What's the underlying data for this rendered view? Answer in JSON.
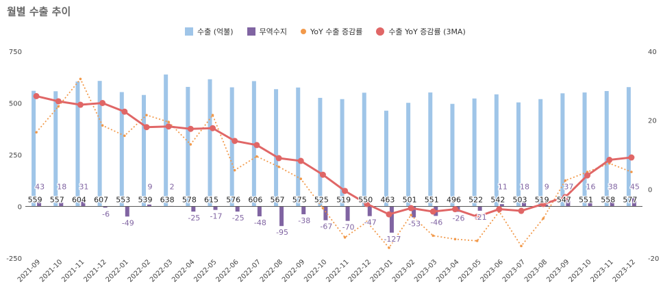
{
  "chart_data": {
    "type": "bar",
    "title": "월별 수출 추이",
    "categories": [
      "2021-09",
      "2021-10",
      "2021-11",
      "2021-12",
      "2022-01",
      "2022-02",
      "2022-03",
      "2022-04",
      "2022-05",
      "2022-06",
      "2022-07",
      "2022-08",
      "2022-09",
      "2022-10",
      "2022-11",
      "2022-12",
      "2023-01",
      "2023-02",
      "2023-03",
      "2023-04",
      "2023-05",
      "2023-06",
      "2023-07",
      "2023-08",
      "2023-09",
      "2023-10",
      "2023-11",
      "2023-12"
    ],
    "y_left": {
      "min": -250,
      "max": 750,
      "ticks": [
        "-250",
        "0",
        "250",
        "500",
        "750"
      ]
    },
    "y_right": {
      "min": -20,
      "max": 40,
      "ticks": [
        "-20",
        "0",
        "20",
        "40"
      ]
    },
    "series": [
      {
        "name": "수출 (억불)",
        "kind": "bar",
        "axis": "left",
        "color": "#9fc5e8",
        "values": [
          559,
          557,
          604,
          607,
          553,
          539,
          638,
          578,
          615,
          576,
          606,
          567,
          575,
          525,
          519,
          550,
          463,
          501,
          551,
          496,
          522,
          542,
          503,
          519,
          547,
          551,
          558,
          577
        ],
        "labels": [
          "559",
          "557",
          "604",
          "607",
          "553",
          "539",
          "638",
          "578",
          "615",
          "576",
          "606",
          "567",
          "575",
          "525",
          "519",
          "550",
          "463",
          "501",
          "551",
          "496",
          "522",
          "542",
          "503",
          "519",
          "547",
          "551",
          "558",
          "577"
        ]
      },
      {
        "name": "무역수지",
        "kind": "bar",
        "axis": "left",
        "color": "#8064a2",
        "values": [
          43,
          18,
          31,
          -6,
          -49,
          9,
          2,
          -25,
          -17,
          -25,
          -48,
          -95,
          -38,
          -67,
          -70,
          -47,
          -127,
          -53,
          -46,
          -26,
          -21,
          11,
          18,
          9,
          37,
          16,
          38,
          45
        ],
        "labels": [
          "43",
          "18",
          "31",
          "-6",
          "-49",
          "9",
          "2",
          "-25",
          "-17",
          "-25",
          "-48",
          "-95",
          "-38",
          "-67",
          "-70",
          "-47",
          "-127",
          "-53",
          "-46",
          "-26",
          "-21",
          "11",
          "18",
          "9",
          "37",
          "16",
          "38",
          "45"
        ]
      },
      {
        "name": "YoY 수출 증감률",
        "kind": "line-dotted",
        "axis": "right",
        "color": "#f2994a",
        "values": [
          16.5,
          24.0,
          32.0,
          18.5,
          15.5,
          21.5,
          19.5,
          13.0,
          21.5,
          5.5,
          9.5,
          6.5,
          3.0,
          -5.5,
          -14.0,
          -9.5,
          -17.0,
          -7.5,
          -13.5,
          -14.5,
          -15.0,
          -6.5,
          -16.5,
          -8.5,
          2.5,
          5.0,
          7.5,
          5.0
        ]
      },
      {
        "name": "수출 YoY 증감률 (3MA)",
        "kind": "line",
        "axis": "right",
        "color": "#e06666",
        "values": [
          27.0,
          25.5,
          24.5,
          25.0,
          22.5,
          18.0,
          18.2,
          17.5,
          17.7,
          14.0,
          12.8,
          9.0,
          8.2,
          4.2,
          -0.5,
          -4.3,
          -7.3,
          -5.5,
          -6.5,
          -5.8,
          -8.0,
          -5.8,
          -6.3,
          -4.3,
          -2.3,
          4.0,
          8.5,
          9.2
        ]
      }
    ],
    "legend_position": "top-center",
    "grid": false
  }
}
